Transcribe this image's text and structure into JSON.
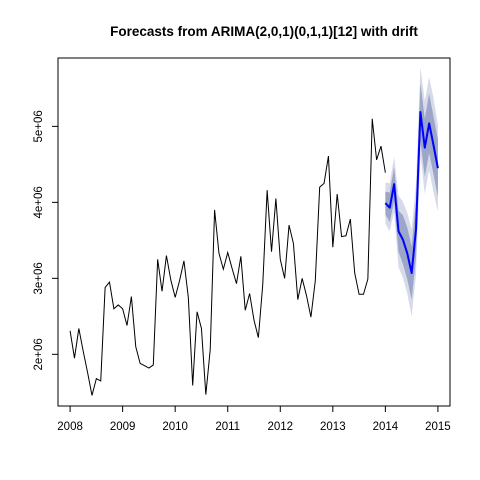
{
  "chart_data": {
    "type": "line",
    "title": "Forecasts from ARIMA(2,0,1)(0,1,1)[12] with drift",
    "xlabel": "",
    "ylabel": "",
    "xlim": [
      2007.77,
      2015.23
    ],
    "ylim": [
      1320000,
      5900000
    ],
    "x_ticks": [
      2008,
      2009,
      2010,
      2011,
      2012,
      2013,
      2014,
      2015
    ],
    "x_tick_labels": [
      "2008",
      "2009",
      "2010",
      "2011",
      "2012",
      "2013",
      "2014",
      "2015"
    ],
    "y_ticks": [
      2000000,
      3000000,
      4000000,
      5000000
    ],
    "y_tick_labels": [
      "2e+06",
      "3e+06",
      "4e+06",
      "5e+06"
    ],
    "grid": false,
    "series": [
      {
        "kind": "observed",
        "color": "#000000",
        "x_start": 2008.0,
        "frequency": 12,
        "values": [
          2310000,
          1950000,
          2340000,
          2040000,
          1760000,
          1460000,
          1680000,
          1650000,
          2880000,
          2950000,
          2600000,
          2650000,
          2600000,
          2380000,
          2760000,
          2100000,
          1880000,
          1850000,
          1820000,
          1860000,
          3250000,
          2830000,
          3300000,
          2980000,
          2750000,
          2970000,
          3230000,
          2750000,
          1590000,
          2560000,
          2340000,
          1470000,
          2060000,
          3900000,
          3330000,
          3120000,
          3340000,
          3130000,
          2930000,
          3290000,
          2580000,
          2800000,
          2450000,
          2220000,
          2920000,
          4160000,
          3350000,
          4050000,
          3250000,
          3000000,
          3700000,
          3460000,
          2720000,
          3000000,
          2770000,
          2490000,
          2970000,
          4200000,
          4250000,
          4610000,
          3410000,
          4110000,
          3550000,
          3560000,
          3780000,
          3070000,
          2790000,
          2790000,
          2990000,
          5100000,
          4560000,
          4740000,
          4390000
        ]
      },
      {
        "kind": "forecast",
        "color": "#0000FF",
        "x_start": 2014.0,
        "frequency": 12,
        "values": [
          3990000,
          3930000,
          4240000,
          3620000,
          3510000,
          3330000,
          3070000,
          3650000,
          5190000,
          4720000,
          5040000,
          4750000,
          4450000
        ],
        "interval_80": {
          "lower": [
            3840000,
            3740000,
            4020000,
            3350000,
            3190000,
            2990000,
            2720000,
            3280000,
            4810000,
            4340000,
            4650000,
            4370000,
            4070000
          ],
          "upper": [
            4140000,
            4130000,
            4460000,
            3890000,
            3830000,
            3670000,
            3420000,
            4020000,
            5570000,
            5100000,
            5430000,
            5130000,
            4830000
          ],
          "color": "#9BA6C8"
        },
        "interval_95": {
          "lower": [
            3720000,
            3620000,
            3880000,
            3150000,
            3010000,
            2800000,
            2500000,
            3060000,
            4620000,
            4110000,
            4430000,
            4130000,
            3880000
          ],
          "upper": [
            4260000,
            4250000,
            4600000,
            4090000,
            4010000,
            3860000,
            3640000,
            4240000,
            5780000,
            5330000,
            5650000,
            5370000,
            5020000
          ],
          "color": "#D6DAE9"
        }
      }
    ]
  }
}
